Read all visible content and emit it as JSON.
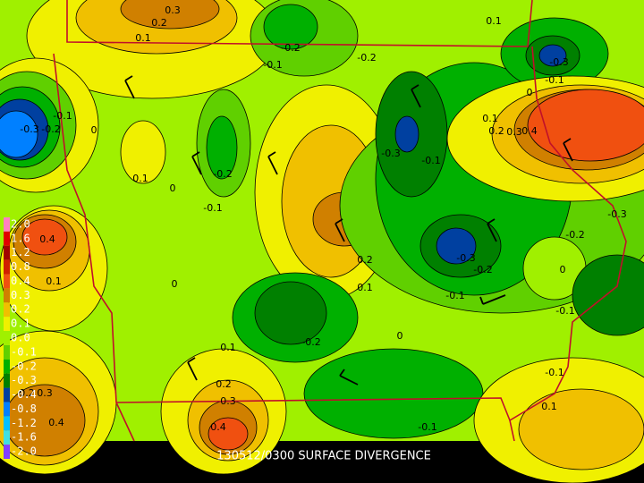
{
  "title": "130512/0300 SURFACE DIVERGENCE",
  "legend": [
    {
      "label": "2.0",
      "color": "#ff80c0"
    },
    {
      "label": "1.6",
      "color": "#e00000"
    },
    {
      "label": "1.2",
      "color": "#a00000"
    },
    {
      "label": "0.8",
      "color": "#d02000"
    },
    {
      "label": "0.4",
      "color": "#f05010"
    },
    {
      "label": "0.3",
      "color": "#d08000"
    },
    {
      "label": "0.2",
      "color": "#f0c000"
    },
    {
      "label": "0.1",
      "color": "#f0f000"
    },
    {
      "label": "0.0",
      "color": "#a0f000"
    },
    {
      "label": "-0.1",
      "color": "#60d000"
    },
    {
      "label": "-0.2",
      "color": "#00b000"
    },
    {
      "label": "-0.3",
      "color": "#008000"
    },
    {
      "label": "-0.4",
      "color": "#0040a0"
    },
    {
      "label": "-0.8",
      "color": "#0080ff"
    },
    {
      "label": "-1.2",
      "color": "#00c0ff"
    },
    {
      "label": "-1.6",
      "color": "#40e0e0"
    },
    {
      "label": "-2.0",
      "color": "#8040ff"
    }
  ],
  "contour_labels": [
    "0.3",
    "0.2",
    "0.1",
    "-0.2",
    "-0.1",
    "-0.2",
    "0.1",
    "-0.3",
    "-0.1",
    "0",
    "0.1",
    "0.2",
    "0.3",
    "0.4",
    "-0.1",
    "-0.3",
    "-0.2",
    "0",
    "0.1",
    "0",
    "-0.2",
    "-0.1",
    "-0.3",
    "-0.1",
    "-0.3",
    "-0.2",
    "0",
    "-0.1",
    "0.4",
    "0.1",
    "0",
    "0.2",
    "0.1",
    "-0.3",
    "-0.2",
    "-0.1",
    "0",
    "-0.2",
    "0.1",
    "0.2",
    "0.3",
    "0.4",
    "0.3",
    "0.2",
    "0.4",
    "-0.1",
    "0.1",
    "-0.1"
  ]
}
